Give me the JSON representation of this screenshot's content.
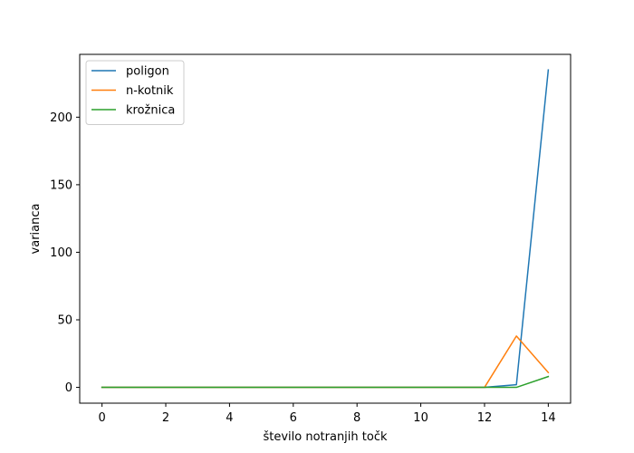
{
  "chart_data": {
    "type": "line",
    "title": "",
    "xlabel": "število notranjih točk",
    "ylabel": "varianca",
    "xlim": [
      -0.7,
      14.7
    ],
    "ylim": [
      -11.7,
      246.5
    ],
    "xticks": [
      0,
      2,
      4,
      6,
      8,
      10,
      12,
      14
    ],
    "yticks": [
      0,
      50,
      100,
      150,
      200
    ],
    "grid": false,
    "legend_position": "upper-left",
    "x": [
      0,
      1,
      2,
      3,
      4,
      5,
      6,
      7,
      8,
      9,
      10,
      11,
      12,
      13,
      14
    ],
    "series": [
      {
        "name": "poligon",
        "color": "#1f77b4",
        "values": [
          0,
          0,
          0,
          0,
          0,
          0,
          0,
          0,
          0,
          0,
          0,
          0,
          0,
          2,
          235
        ]
      },
      {
        "name": "n-kotnik",
        "color": "#ff7f0e",
        "values": [
          0,
          0,
          0,
          0,
          0,
          0,
          0,
          0,
          0,
          0,
          0,
          0,
          0,
          38,
          11
        ]
      },
      {
        "name": "krožnica",
        "color": "#2ca02c",
        "values": [
          0,
          0,
          0,
          0,
          0,
          0,
          0,
          0,
          0,
          0,
          0,
          0,
          0,
          0,
          8
        ]
      }
    ]
  }
}
